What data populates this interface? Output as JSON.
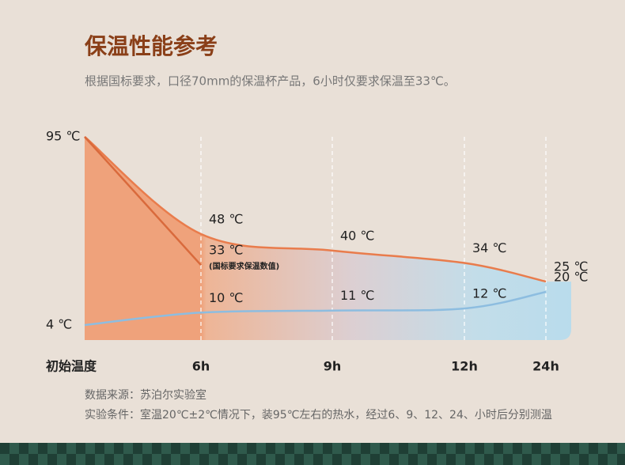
{
  "chart_data": {
    "type": "line",
    "title": "保温性能参考",
    "subtitle": "根据国标要求，口径70mm的保温杯产品，6小时仅要求保温至33℃。",
    "categories": [
      "初始温度",
      "6h",
      "9h",
      "12h",
      "24h"
    ],
    "series": [
      {
        "color": "#e97c4c",
        "values": [
          95,
          48,
          40,
          34,
          25
        ],
        "value_labels": [
          "95 ℃",
          "48 ℃",
          "40 ℃",
          "34 ℃",
          "25 ℃"
        ]
      },
      {
        "color": "#d96a3c",
        "values": [
          95,
          33,
          null,
          null,
          null
        ],
        "value_labels": [
          null,
          "33 ℃",
          null,
          null,
          null
        ]
      },
      {
        "color": "#8dbde0",
        "values": [
          4,
          10,
          11,
          12,
          20
        ],
        "value_labels": [
          "4 ℃",
          "10 ℃",
          "11 ℃",
          "12 ℃",
          "20 ℃"
        ]
      }
    ],
    "annotation": "(国标要求保温数值)",
    "notes": [
      "数据来源：苏泊尔实验室",
      "实验条件：室温20℃±2℃情况下，装95℃左右的热水，经过6、9、12、24、小时后分别测温"
    ]
  }
}
